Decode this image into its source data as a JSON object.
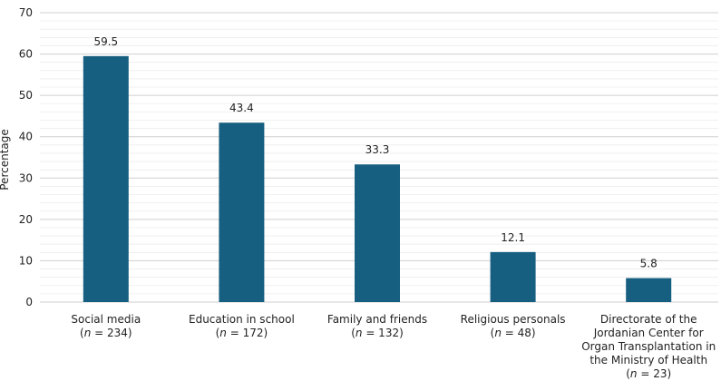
{
  "chart_data": {
    "type": "bar",
    "ylabel": "Percentage",
    "xlabel": "",
    "ylim": [
      0,
      70
    ],
    "yticks": [
      "0",
      "10",
      "20",
      "30",
      "40",
      "50",
      "60",
      "70"
    ],
    "grid": true,
    "bar_color": "#175f80",
    "grid_color": "#dcdcdc",
    "categories": [
      {
        "lines": [
          "Social media"
        ],
        "n_prefix": "(",
        "n_symbol": "n",
        "n_value": " = 234)"
      },
      {
        "lines": [
          "Education in school"
        ],
        "n_prefix": "(",
        "n_symbol": "n",
        "n_value": " = 172)"
      },
      {
        "lines": [
          "Family and friends"
        ],
        "n_prefix": "(",
        "n_symbol": "n",
        "n_value": " = 132)"
      },
      {
        "lines": [
          "Religious personals"
        ],
        "n_prefix": "(",
        "n_symbol": "n",
        "n_value": " = 48)"
      },
      {
        "lines": [
          "Directorate of the",
          "Jordanian Center for",
          "Organ Transplantation in",
          "the Ministry of Health"
        ],
        "n_prefix": "(",
        "n_symbol": "n",
        "n_value": " = 23)"
      }
    ],
    "values": [
      59.5,
      43.4,
      33.3,
      12.1,
      5.8
    ],
    "value_labels": [
      "59.5",
      "43.4",
      "33.3",
      "12.1",
      "5.8"
    ]
  }
}
